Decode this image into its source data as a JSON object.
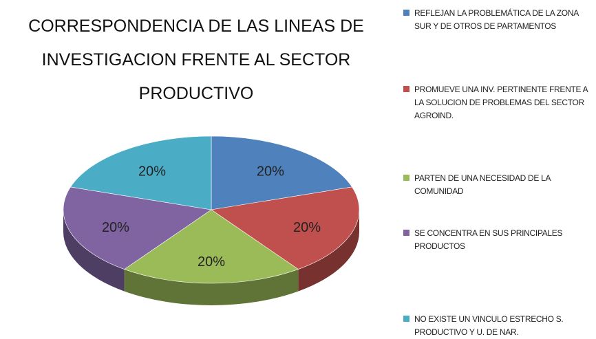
{
  "chart_data": {
    "type": "pie",
    "title": "CORRESPONDENCIA DE LAS LINEAS DE INVESTIGACION FRENTE AL SECTOR PRODUCTIVO",
    "categories": [
      "REFLEJAN LA PROBLEMÁTICA DE LA ZONA SUR Y DE OTROS DE PARTAMENTOS",
      "PROMUEVE UNA INV. PERTINENTE FRENTE A LA SOLUCION DE PROBLEMAS DEL SECTOR AGROIND.",
      "PARTEN DE UNA NECESIDAD DE LA COMUNIDAD",
      "SE CONCENTRA EN SUS PRINCIPALES PRODUCTOS",
      "NO EXISTE UN VINCULO ESTRECHO S. PRODUCTIVO Y U. DE NAR."
    ],
    "values": [
      20,
      20,
      20,
      20,
      20
    ],
    "value_labels": [
      "20%",
      "20%",
      "20%",
      "20%",
      "20%"
    ],
    "colors": [
      "#4f81bd",
      "#c0504d",
      "#9bbb59",
      "#8064a2",
      "#4bacc6"
    ],
    "legend": "right"
  }
}
